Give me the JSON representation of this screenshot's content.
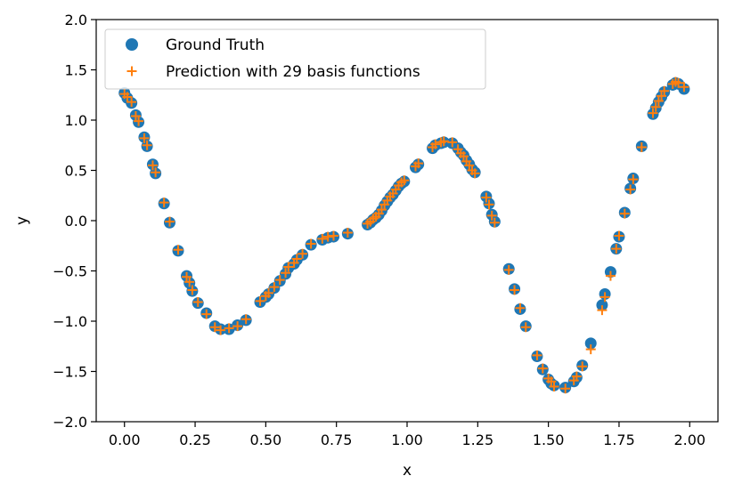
{
  "chart_data": {
    "type": "scatter",
    "title": "",
    "xlabel": "x",
    "ylabel": "y",
    "xlim": [
      -0.1,
      2.1
    ],
    "ylim": [
      -2.0,
      2.0
    ],
    "xticks": [
      0.0,
      0.25,
      0.5,
      0.75,
      1.0,
      1.25,
      1.5,
      1.75,
      2.0
    ],
    "xtick_labels": [
      "0.00",
      "0.25",
      "0.50",
      "0.75",
      "1.00",
      "1.25",
      "1.50",
      "1.75",
      "2.00"
    ],
    "yticks": [
      -2.0,
      -1.5,
      -1.0,
      -0.5,
      0.0,
      0.5,
      1.0,
      1.5,
      2.0
    ],
    "ytick_labels": [
      "−2.0",
      "−1.5",
      "−1.0",
      "−0.5",
      "0.0",
      "0.5",
      "1.0",
      "1.5",
      "2.0"
    ],
    "grid": false,
    "legend_position": "top-left",
    "series": [
      {
        "name": "Ground Truth",
        "marker": "circle",
        "color": "#1f77b4",
        "x": [
          0.0,
          0.01,
          0.025,
          0.04,
          0.05,
          0.07,
          0.08,
          0.1,
          0.11,
          0.14,
          0.16,
          0.19,
          0.22,
          0.23,
          0.24,
          0.26,
          0.29,
          0.32,
          0.34,
          0.37,
          0.4,
          0.43,
          0.48,
          0.5,
          0.51,
          0.53,
          0.55,
          0.57,
          0.58,
          0.6,
          0.61,
          0.63,
          0.66,
          0.7,
          0.72,
          0.74,
          0.79,
          0.86,
          0.87,
          0.88,
          0.89,
          0.9,
          0.91,
          0.92,
          0.93,
          0.94,
          0.95,
          0.96,
          0.97,
          0.98,
          0.99,
          1.03,
          1.04,
          1.09,
          1.1,
          1.12,
          1.13,
          1.16,
          1.18,
          1.19,
          1.2,
          1.21,
          1.22,
          1.23,
          1.24,
          1.28,
          1.29,
          1.3,
          1.31,
          1.36,
          1.38,
          1.4,
          1.42,
          1.46,
          1.48,
          1.5,
          1.51,
          1.52,
          1.56,
          1.59,
          1.6,
          1.62,
          1.65,
          1.69,
          1.7,
          1.72,
          1.74,
          1.75,
          1.77,
          1.79,
          1.8,
          1.83,
          1.87,
          1.88,
          1.89,
          1.9,
          1.91,
          1.94,
          1.95,
          1.96,
          1.98
        ],
        "y": [
          1.27,
          1.22,
          1.17,
          1.05,
          0.98,
          0.83,
          0.74,
          0.56,
          0.47,
          0.17,
          -0.02,
          -0.3,
          -0.55,
          -0.62,
          -0.7,
          -0.82,
          -0.92,
          -1.05,
          -1.08,
          -1.08,
          -1.04,
          -0.99,
          -0.81,
          -0.76,
          -0.73,
          -0.67,
          -0.6,
          -0.53,
          -0.47,
          -0.43,
          -0.39,
          -0.34,
          -0.24,
          -0.19,
          -0.17,
          -0.16,
          -0.13,
          -0.04,
          -0.02,
          0.01,
          0.03,
          0.06,
          0.1,
          0.15,
          0.19,
          0.23,
          0.26,
          0.3,
          0.34,
          0.37,
          0.39,
          0.53,
          0.56,
          0.72,
          0.75,
          0.77,
          0.78,
          0.77,
          0.72,
          0.68,
          0.65,
          0.6,
          0.56,
          0.51,
          0.48,
          0.24,
          0.17,
          0.06,
          -0.01,
          -0.48,
          -0.68,
          -0.88,
          -1.05,
          -1.35,
          -1.48,
          -1.58,
          -1.62,
          -1.64,
          -1.66,
          -1.6,
          -1.56,
          -1.44,
          -1.22,
          -0.84,
          -0.73,
          -0.51,
          -0.28,
          -0.16,
          0.08,
          0.32,
          0.42,
          0.74,
          1.06,
          1.12,
          1.18,
          1.23,
          1.28,
          1.35,
          1.37,
          1.36,
          1.31
        ]
      },
      {
        "name": "Prediction with 29 basis functions",
        "marker": "plus",
        "color": "#ff7f0e",
        "x": [
          0.0,
          0.01,
          0.025,
          0.04,
          0.05,
          0.07,
          0.08,
          0.1,
          0.11,
          0.14,
          0.16,
          0.19,
          0.22,
          0.23,
          0.24,
          0.26,
          0.29,
          0.32,
          0.34,
          0.37,
          0.4,
          0.43,
          0.48,
          0.5,
          0.51,
          0.53,
          0.55,
          0.57,
          0.58,
          0.6,
          0.61,
          0.63,
          0.66,
          0.7,
          0.72,
          0.74,
          0.79,
          0.86,
          0.87,
          0.88,
          0.89,
          0.9,
          0.91,
          0.92,
          0.93,
          0.94,
          0.95,
          0.96,
          0.97,
          0.98,
          0.99,
          1.03,
          1.04,
          1.09,
          1.1,
          1.12,
          1.13,
          1.16,
          1.18,
          1.19,
          1.2,
          1.21,
          1.22,
          1.23,
          1.24,
          1.28,
          1.29,
          1.3,
          1.31,
          1.36,
          1.38,
          1.4,
          1.42,
          1.46,
          1.48,
          1.5,
          1.51,
          1.52,
          1.56,
          1.59,
          1.6,
          1.62,
          1.65,
          1.69,
          1.7,
          1.72,
          1.74,
          1.75,
          1.77,
          1.79,
          1.8,
          1.83,
          1.87,
          1.88,
          1.89,
          1.9,
          1.91,
          1.94,
          1.95,
          1.96,
          1.98
        ],
        "y": [
          1.26,
          1.23,
          1.18,
          1.04,
          0.99,
          0.82,
          0.75,
          0.55,
          0.48,
          0.18,
          -0.01,
          -0.29,
          -0.56,
          -0.61,
          -0.69,
          -0.81,
          -0.93,
          -1.06,
          -1.09,
          -1.07,
          -1.05,
          -0.98,
          -0.8,
          -0.75,
          -0.72,
          -0.66,
          -0.59,
          -0.52,
          -0.46,
          -0.42,
          -0.38,
          -0.33,
          -0.23,
          -0.18,
          -0.16,
          -0.15,
          -0.12,
          -0.03,
          -0.01,
          0.02,
          0.04,
          0.07,
          0.11,
          0.16,
          0.2,
          0.24,
          0.27,
          0.31,
          0.35,
          0.38,
          0.4,
          0.54,
          0.57,
          0.73,
          0.76,
          0.78,
          0.79,
          0.78,
          0.71,
          0.67,
          0.64,
          0.59,
          0.55,
          0.5,
          0.47,
          0.23,
          0.16,
          0.05,
          -0.02,
          -0.49,
          -0.69,
          -0.87,
          -1.06,
          -1.34,
          -1.47,
          -1.57,
          -1.6,
          -1.65,
          -1.67,
          -1.59,
          -1.55,
          -1.45,
          -1.28,
          -0.89,
          -0.76,
          -0.55,
          -0.28,
          -0.15,
          0.07,
          0.31,
          0.41,
          0.73,
          1.07,
          1.13,
          1.19,
          1.24,
          1.29,
          1.36,
          1.38,
          1.37,
          1.33
        ]
      }
    ]
  }
}
